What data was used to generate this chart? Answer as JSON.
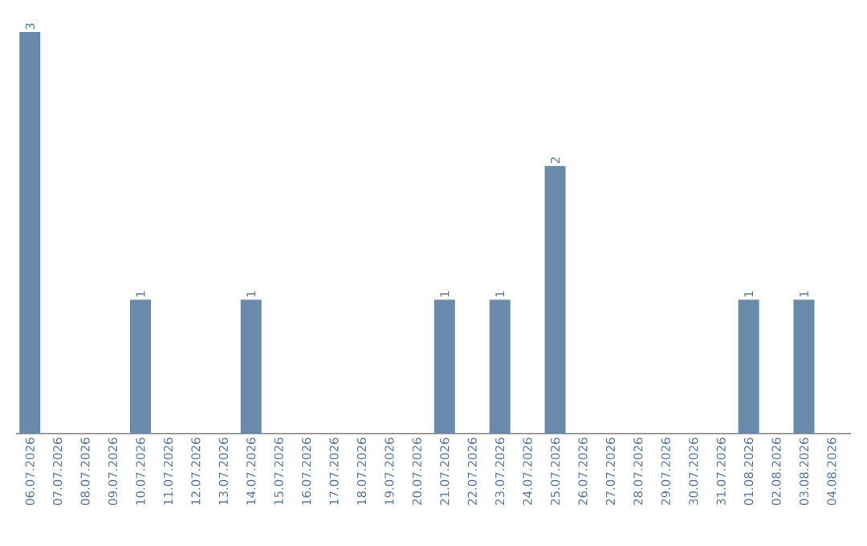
{
  "chart_data": {
    "type": "bar",
    "categories": [
      "06.07.2026",
      "07.07.2026",
      "08.07.2026",
      "09.07.2026",
      "10.07.2026",
      "11.07.2026",
      "12.07.2026",
      "13.07.2026",
      "14.07.2026",
      "15.07.2026",
      "16.07.2026",
      "17.07.2026",
      "18.07.2026",
      "19.07.2026",
      "20.07.2026",
      "21.07.2026",
      "22.07.2026",
      "23.07.2026",
      "24.07.2026",
      "25.07.2026",
      "26.07.2026",
      "27.07.2026",
      "28.07.2026",
      "29.07.2026",
      "30.07.2026",
      "31.07.2026",
      "01.08.2026",
      "02.08.2026",
      "03.08.2026",
      "04.08.2026"
    ],
    "values": [
      3,
      0,
      0,
      0,
      1,
      0,
      0,
      0,
      1,
      0,
      0,
      0,
      0,
      0,
      0,
      1,
      0,
      1,
      0,
      2,
      0,
      0,
      0,
      0,
      0,
      0,
      1,
      0,
      1,
      0
    ],
    "value_labels": [
      "3",
      null,
      null,
      null,
      "1",
      null,
      null,
      null,
      "1",
      null,
      null,
      null,
      null,
      null,
      null,
      "1",
      null,
      "1",
      null,
      "2",
      null,
      null,
      null,
      null,
      null,
      null,
      "1",
      null,
      "1",
      null
    ],
    "color": "#6a8aab"
  }
}
